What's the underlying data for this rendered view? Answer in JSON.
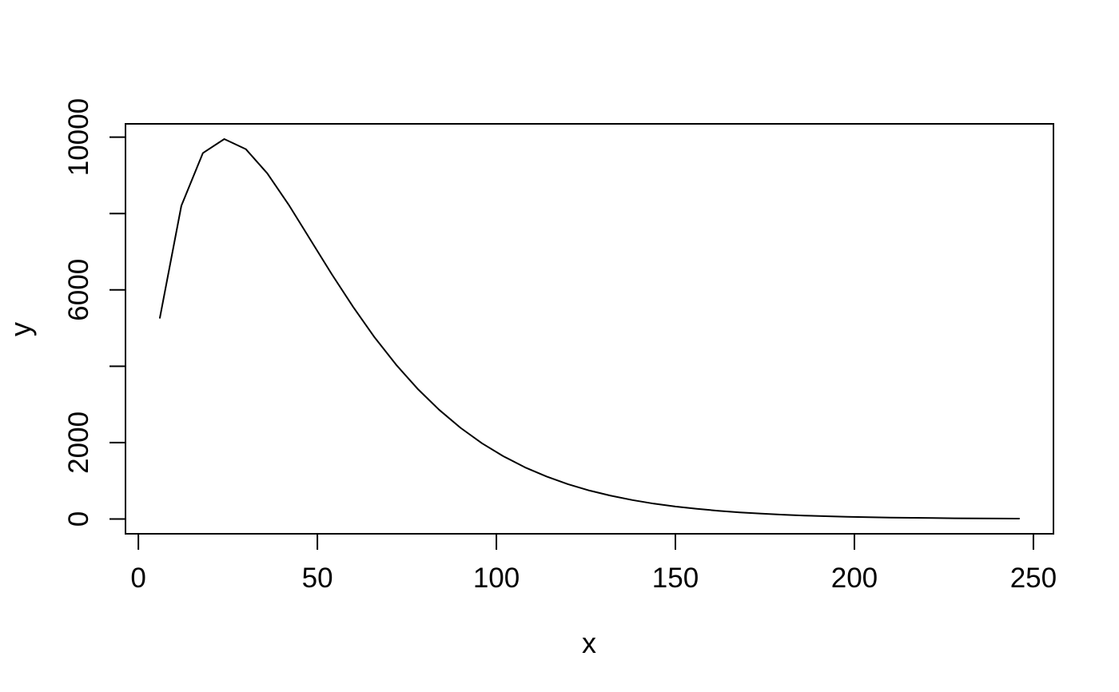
{
  "figure": {
    "background": "#ffffff",
    "foreground": "#000000"
  },
  "chart_data": {
    "type": "line",
    "title": "",
    "xlabel": "x",
    "ylabel": "y",
    "line_color": "#000000",
    "background": "#ffffff",
    "grid": false,
    "legend": null,
    "xlim": [
      -3.6,
      255.6
    ],
    "ylim": [
      -388,
      10348
    ],
    "x_ticks": [
      0,
      50,
      100,
      150,
      200,
      250
    ],
    "x_tick_labels": [
      "0",
      "50",
      "100",
      "150",
      "200",
      "250"
    ],
    "y_ticks": [
      0,
      2000,
      4000,
      6000,
      8000,
      10000
    ],
    "y_tick_labels": [
      "0",
      "2000",
      "",
      "6000",
      "",
      "10000"
    ],
    "x": [
      6,
      12,
      18,
      24,
      30,
      36,
      42,
      48,
      54,
      60,
      66,
      72,
      78,
      84,
      90,
      96,
      102,
      108,
      114,
      120,
      126,
      132,
      138,
      144,
      150,
      156,
      162,
      168,
      174,
      180,
      186,
      192,
      198,
      204,
      210,
      216,
      222,
      228,
      234,
      240,
      246
    ],
    "y": [
      5266,
      8203,
      9582,
      9950,
      9687,
      9053,
      8225,
      7321,
      6414,
      5551,
      4755,
      4040,
      3409,
      2859,
      2385,
      1982,
      1640,
      1352,
      1112,
      911,
      745,
      608,
      495,
      402,
      326,
      264,
      214,
      173,
      139,
      112,
      90,
      73,
      58,
      47,
      37,
      30,
      24,
      19,
      15,
      12,
      10
    ]
  }
}
